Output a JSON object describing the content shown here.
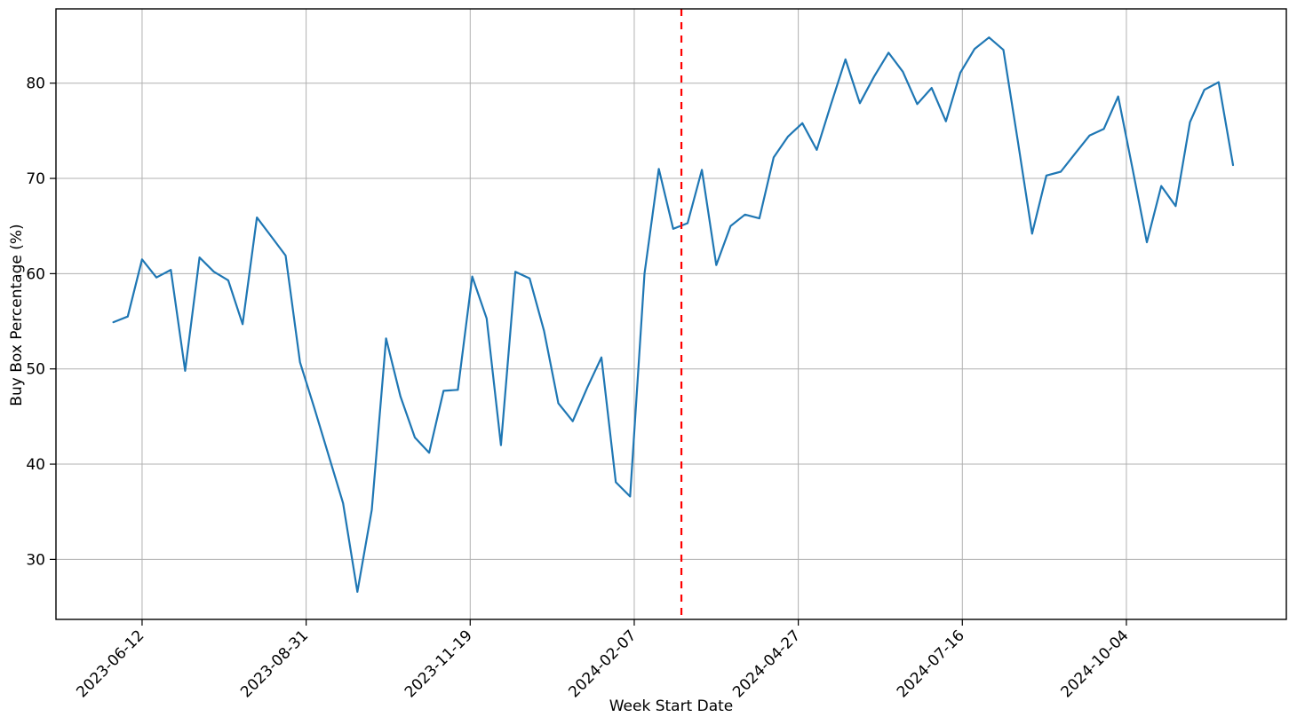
{
  "chart_data": {
    "type": "line",
    "title": "",
    "xlabel": "Week Start Date",
    "ylabel": "Buy Box Percentage (%)",
    "grid": true,
    "legend_position": "none",
    "ylim": [
      23.7,
      87.8
    ],
    "xlim_dates": [
      "2023-05-01",
      "2024-12-21"
    ],
    "y_ticks": [
      30,
      40,
      50,
      60,
      70,
      80
    ],
    "x_ticks": [
      "2023-06-12",
      "2023-08-31",
      "2023-11-19",
      "2024-02-07",
      "2024-04-27",
      "2024-07-16",
      "2024-10-04"
    ],
    "colors": {
      "series": "#1f77b4",
      "event_line": "#ff0000",
      "grid": "#b0b0b0",
      "spine": "#000000",
      "text": "#000000",
      "background": "#ffffff"
    },
    "event_line": {
      "date": "2024-03-01",
      "style": "dashed"
    },
    "series": [
      {
        "name": "Buy Box Percentage",
        "x": [
          "2023-05-29",
          "2023-06-05",
          "2023-06-12",
          "2023-06-19",
          "2023-06-26",
          "2023-07-03",
          "2023-07-10",
          "2023-07-17",
          "2023-07-24",
          "2023-07-31",
          "2023-08-07",
          "2023-08-14",
          "2023-08-21",
          "2023-08-28",
          "2023-09-04",
          "2023-09-11",
          "2023-09-18",
          "2023-09-25",
          "2023-10-02",
          "2023-10-09",
          "2023-10-16",
          "2023-10-23",
          "2023-10-30",
          "2023-11-06",
          "2023-11-13",
          "2023-11-20",
          "2023-11-27",
          "2023-12-04",
          "2023-12-11",
          "2023-12-18",
          "2023-12-25",
          "2024-01-01",
          "2024-01-08",
          "2024-01-15",
          "2024-01-22",
          "2024-01-29",
          "2024-02-05",
          "2024-02-12",
          "2024-02-19",
          "2024-02-26",
          "2024-03-04",
          "2024-03-11",
          "2024-03-18",
          "2024-03-25",
          "2024-04-01",
          "2024-04-08",
          "2024-04-15",
          "2024-04-22",
          "2024-04-29",
          "2024-05-06",
          "2024-05-13",
          "2024-05-20",
          "2024-05-27",
          "2024-06-03",
          "2024-06-10",
          "2024-06-17",
          "2024-06-24",
          "2024-07-01",
          "2024-07-08",
          "2024-07-15",
          "2024-07-22",
          "2024-07-29",
          "2024-08-05",
          "2024-08-12",
          "2024-08-19",
          "2024-08-26",
          "2024-09-02",
          "2024-09-09",
          "2024-09-16",
          "2024-09-23",
          "2024-09-30",
          "2024-10-07",
          "2024-10-14",
          "2024-10-21",
          "2024-10-28",
          "2024-11-04",
          "2024-11-11",
          "2024-11-18",
          "2024-11-25"
        ],
        "values": [
          54.9,
          55.5,
          61.5,
          59.6,
          60.4,
          49.8,
          61.7,
          60.2,
          59.3,
          54.7,
          65.9,
          63.9,
          61.9,
          50.7,
          45.9,
          40.9,
          35.9,
          26.6,
          35.2,
          53.2,
          47.1,
          42.8,
          41.2,
          47.7,
          47.8,
          59.7,
          55.3,
          42.0,
          60.2,
          59.5,
          54.0,
          46.4,
          44.5,
          48.0,
          51.2,
          38.1,
          36.6,
          60.0,
          71.0,
          64.7,
          65.3,
          70.9,
          60.9,
          65.0,
          66.2,
          65.8,
          72.2,
          74.4,
          75.8,
          73.0,
          77.8,
          82.5,
          77.9,
          80.7,
          83.2,
          81.2,
          77.8,
          79.5,
          76.0,
          81.1,
          83.6,
          84.8,
          83.5,
          74.0,
          64.2,
          70.3,
          70.7,
          72.6,
          74.5,
          75.2,
          78.6,
          71.0,
          63.3,
          69.2,
          67.1,
          75.9,
          79.3,
          80.1,
          71.4
        ]
      }
    ]
  }
}
